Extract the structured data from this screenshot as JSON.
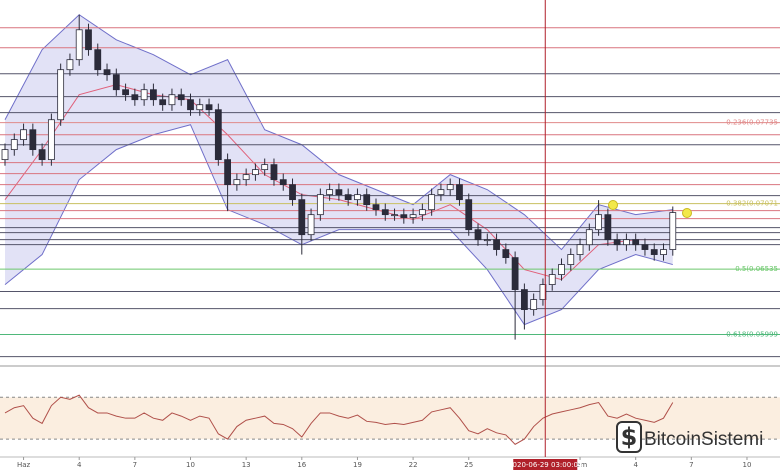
{
  "chart_data": {
    "type": "candlestick",
    "xlim": [
      -1.27,
      40.78
    ],
    "ylim": [
      0.0579,
      0.0874
    ],
    "xticks": [
      {
        "value": 0,
        "label": "Haz"
      },
      {
        "value": 3,
        "label": "4"
      },
      {
        "value": 6,
        "label": "7"
      },
      {
        "value": 9,
        "label": "10"
      },
      {
        "value": 12,
        "label": "13"
      },
      {
        "value": 15,
        "label": "16"
      },
      {
        "value": 18,
        "label": "19"
      },
      {
        "value": 21,
        "label": "22"
      },
      {
        "value": 24,
        "label": "25"
      },
      {
        "value": 30,
        "label": "Tem"
      },
      {
        "value": 33,
        "label": "4"
      },
      {
        "value": 36,
        "label": "7"
      },
      {
        "value": 39,
        "label": "10"
      }
    ],
    "cursor": {
      "value": 28.125,
      "label": "2020-06-29 03:00:00"
    },
    "up_color": "#ffffff",
    "down_color": "#2b2b3a",
    "candles": [
      [
        -1,
        0.07432,
        0.07564,
        0.07382,
        0.07514
      ],
      [
        -0.5,
        0.07514,
        0.07646,
        0.07464,
        0.07596
      ],
      [
        0,
        0.07596,
        0.07727,
        0.07546,
        0.07677
      ],
      [
        0.5,
        0.07677,
        0.07727,
        0.07464,
        0.07514
      ],
      [
        1,
        0.07514,
        0.07564,
        0.07382,
        0.07432
      ],
      [
        1.5,
        0.07432,
        0.07809,
        0.07382,
        0.07759
      ],
      [
        2,
        0.07759,
        0.08219,
        0.07709,
        0.08169
      ],
      [
        2.5,
        0.08169,
        0.08301,
        0.08119,
        0.08251
      ],
      [
        3,
        0.08251,
        0.0862,
        0.08201,
        0.08496
      ],
      [
        3.5,
        0.08496,
        0.08546,
        0.08283,
        0.08333
      ],
      [
        4,
        0.08333,
        0.08383,
        0.08119,
        0.08169
      ],
      [
        4.5,
        0.08169,
        0.08219,
        0.08078,
        0.08128
      ],
      [
        5,
        0.08128,
        0.08178,
        0.07955,
        0.08005
      ],
      [
        5.5,
        0.08005,
        0.08055,
        0.07914,
        0.07964
      ],
      [
        6,
        0.07964,
        0.08014,
        0.07873,
        0.07923
      ],
      [
        6.5,
        0.07923,
        0.08055,
        0.07873,
        0.08005
      ],
      [
        7,
        0.08005,
        0.08055,
        0.07873,
        0.07923
      ],
      [
        7.5,
        0.07923,
        0.07973,
        0.07832,
        0.07882
      ],
      [
        8,
        0.07882,
        0.08014,
        0.07832,
        0.07964
      ],
      [
        8.5,
        0.07964,
        0.08014,
        0.07873,
        0.07923
      ],
      [
        9,
        0.07923,
        0.07973,
        0.07791,
        0.07841
      ],
      [
        9.5,
        0.07841,
        0.07932,
        0.07791,
        0.07882
      ],
      [
        10,
        0.07882,
        0.07932,
        0.07791,
        0.07841
      ],
      [
        10.5,
        0.07841,
        0.07891,
        0.07382,
        0.07432
      ],
      [
        11,
        0.07432,
        0.07482,
        0.0701,
        0.07227
      ],
      [
        11.5,
        0.07227,
        0.07318,
        0.07177,
        0.07268
      ],
      [
        12,
        0.07268,
        0.07359,
        0.07218,
        0.07309
      ],
      [
        12.5,
        0.07309,
        0.074,
        0.07259,
        0.0735
      ],
      [
        13,
        0.0735,
        0.07441,
        0.073,
        0.07391
      ],
      [
        13.5,
        0.07391,
        0.07441,
        0.07218,
        0.07268
      ],
      [
        14,
        0.07268,
        0.07318,
        0.07177,
        0.07227
      ],
      [
        14.5,
        0.07227,
        0.07277,
        0.07054,
        0.07104
      ],
      [
        15,
        0.07104,
        0.07154,
        0.06654,
        0.06817
      ],
      [
        15.5,
        0.06817,
        0.07031,
        0.06767,
        0.06981
      ],
      [
        16,
        0.06981,
        0.07195,
        0.06931,
        0.07145
      ],
      [
        16.5,
        0.07145,
        0.07236,
        0.07095,
        0.07186
      ],
      [
        17,
        0.07186,
        0.07236,
        0.07095,
        0.07145
      ],
      [
        17.5,
        0.07145,
        0.07195,
        0.07054,
        0.07104
      ],
      [
        18,
        0.07104,
        0.07195,
        0.07054,
        0.07145
      ],
      [
        18.5,
        0.07145,
        0.07195,
        0.07013,
        0.07063
      ],
      [
        19,
        0.07063,
        0.07113,
        0.06972,
        0.07022
      ],
      [
        19.5,
        0.07022,
        0.07072,
        0.06931,
        0.06981
      ],
      [
        20,
        0.06981,
        0.07031,
        0.06931,
        0.06981
      ],
      [
        20.5,
        0.06981,
        0.07031,
        0.06907,
        0.06957
      ],
      [
        21,
        0.06957,
        0.07031,
        0.06907,
        0.06981
      ],
      [
        21.5,
        0.06981,
        0.07072,
        0.06931,
        0.07022
      ],
      [
        22,
        0.07022,
        0.07195,
        0.06972,
        0.07145
      ],
      [
        22.5,
        0.07145,
        0.07236,
        0.07095,
        0.07186
      ],
      [
        23,
        0.07186,
        0.07277,
        0.07136,
        0.07227
      ],
      [
        23.5,
        0.07227,
        0.07277,
        0.07054,
        0.07104
      ],
      [
        24,
        0.07104,
        0.07154,
        0.06808,
        0.06858
      ],
      [
        24.5,
        0.06858,
        0.06908,
        0.06726,
        0.06776
      ],
      [
        25,
        0.06776,
        0.06826,
        0.06726,
        0.06776
      ],
      [
        25.5,
        0.06776,
        0.06826,
        0.06645,
        0.06695
      ],
      [
        26,
        0.06695,
        0.06745,
        0.06579,
        0.06629
      ],
      [
        26.5,
        0.06629,
        0.06679,
        0.05957,
        0.06367
      ],
      [
        27,
        0.06367,
        0.06417,
        0.0604,
        0.06203
      ],
      [
        27.5,
        0.06203,
        0.06335,
        0.06153,
        0.06285
      ],
      [
        28,
        0.06285,
        0.06458,
        0.06235,
        0.06408
      ],
      [
        28.5,
        0.06408,
        0.0654,
        0.06358,
        0.0649
      ],
      [
        29,
        0.0649,
        0.06622,
        0.0644,
        0.06572
      ],
      [
        29.5,
        0.06572,
        0.06704,
        0.06522,
        0.06654
      ],
      [
        30,
        0.06654,
        0.06785,
        0.06604,
        0.06735
      ],
      [
        30.5,
        0.06735,
        0.06908,
        0.06685,
        0.06858
      ],
      [
        31,
        0.06858,
        0.071,
        0.06808,
        0.06981
      ],
      [
        31.5,
        0.06981,
        0.07031,
        0.06726,
        0.06776
      ],
      [
        32,
        0.06776,
        0.06826,
        0.06685,
        0.06735
      ],
      [
        32.5,
        0.06735,
        0.06826,
        0.06685,
        0.06776
      ],
      [
        33,
        0.06776,
        0.06826,
        0.06685,
        0.06735
      ],
      [
        33.5,
        0.06735,
        0.06785,
        0.06645,
        0.06695
      ],
      [
        34,
        0.06695,
        0.06745,
        0.06604,
        0.06654
      ],
      [
        34.5,
        0.06654,
        0.06745,
        0.06604,
        0.06695
      ],
      [
        35,
        0.06695,
        0.07048,
        0.06645,
        0.06998
      ]
    ],
    "bands": {
      "x": [
        -1,
        1,
        3,
        5,
        7,
        9,
        11,
        13,
        15,
        17,
        19,
        21,
        23,
        25,
        27,
        29,
        31,
        33,
        35
      ],
      "upper": [
        0.07759,
        0.08333,
        0.08619,
        0.08414,
        0.08292,
        0.08128,
        0.08251,
        0.07677,
        0.07554,
        0.07309,
        0.07186,
        0.07063,
        0.07309,
        0.07186,
        0.06981,
        0.06695,
        0.07063,
        0.06981,
        0.07022
      ],
      "middle": [
        0.07104,
        0.07514,
        0.07964,
        0.08046,
        0.07964,
        0.07923,
        0.07636,
        0.07309,
        0.07145,
        0.07104,
        0.07022,
        0.0694,
        0.07063,
        0.06858,
        0.06531,
        0.06449,
        0.06735,
        0.06776,
        0.06776
      ],
      "lower": [
        0.06408,
        0.06654,
        0.07268,
        0.07514,
        0.07636,
        0.07718,
        0.07022,
        0.06899,
        0.06735,
        0.06858,
        0.06858,
        0.06858,
        0.06858,
        0.06531,
        0.0608,
        0.06203,
        0.06531,
        0.06654,
        0.06572
      ],
      "band_color": "#6f6fc9",
      "fill_color": "rgba(125,125,215,0.22)",
      "middle_color": "#e0607a"
    },
    "red_levels": [
      0.08513,
      0.08349,
      0.07636,
      0.07407,
      0.07317,
      0.07227,
      0.07014,
      0.06948
    ],
    "red_level_color": "#d9747f",
    "gray_levels": [
      0.08136,
      0.07948,
      0.07817,
      0.07554,
      0.07137,
      0.06875,
      0.06834,
      0.06776,
      0.06735,
      0.06351,
      0.06211,
      0.05818
    ],
    "gray_level_color": "#55556a",
    "fib_levels": [
      {
        "value": 0.07735,
        "label": "0.236(0.07735",
        "color": "#e08a8a"
      },
      {
        "value": 0.07071,
        "label": "0.382(0.07071",
        "color": "#c8c060"
      },
      {
        "value": 0.06535,
        "label": "0.5(0.06535",
        "color": "#6cc86c"
      },
      {
        "value": 0.05999,
        "label": "0.618(0.05999",
        "color": "#4fb87a"
      }
    ],
    "rsi": {
      "ylim": [
        10,
        98
      ],
      "bands": [
        30,
        70
      ],
      "color": "#b0504a",
      "band_fill": "#fbeee0",
      "values": [
        55,
        60,
        62,
        50,
        45,
        62,
        70,
        68,
        72,
        60,
        55,
        55,
        52,
        50,
        50,
        55,
        50,
        48,
        55,
        52,
        48,
        52,
        50,
        35,
        30,
        42,
        48,
        50,
        52,
        45,
        44,
        40,
        32,
        45,
        55,
        55,
        52,
        50,
        53,
        47,
        46,
        44,
        45,
        44,
        46,
        48,
        56,
        58,
        60,
        50,
        38,
        35,
        40,
        36,
        34,
        25,
        30,
        42,
        50,
        54,
        56,
        58,
        60,
        63,
        65,
        52,
        50,
        54,
        50,
        48,
        46,
        50,
        65
      ]
    },
    "watermark": "BitcoinSistemi"
  }
}
